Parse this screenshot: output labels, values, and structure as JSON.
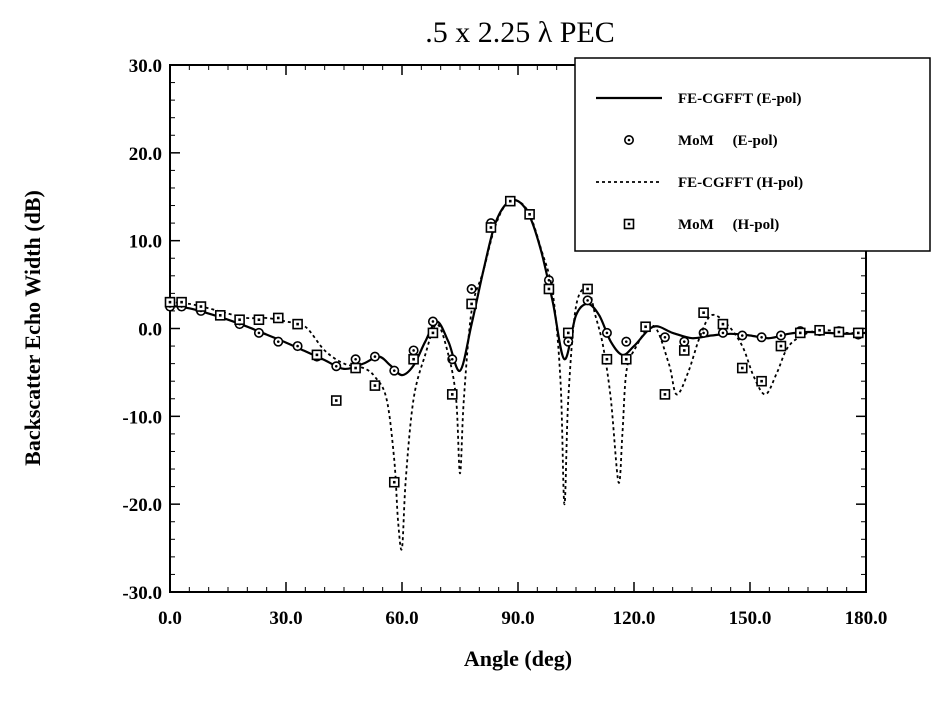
{
  "chart_data": {
    "type": "line",
    "title": ".5 x 2.25 λ PEC",
    "xlabel": "Angle (deg)",
    "ylabel": "Backscatter Echo Width (dB)",
    "xlim": [
      0,
      180
    ],
    "ylim": [
      -30,
      30
    ],
    "xticks": [
      "0.0",
      "30.0",
      "60.0",
      "90.0",
      "120.0",
      "150.0",
      "180.0"
    ],
    "yticks": [
      "30.0",
      "20.0",
      "10.0",
      "0.0",
      "-10.0",
      "-20.0",
      "-30.0"
    ],
    "grid": false,
    "legend_position": "top-right",
    "series": [
      {
        "name": "FE-CGFFT (E-pol)",
        "style": "solid",
        "x": [
          0,
          5,
          10,
          15,
          20,
          25,
          30,
          35,
          40,
          45,
          50,
          54,
          57,
          60,
          63,
          66,
          69,
          72,
          75,
          78,
          81,
          84,
          87,
          90,
          93,
          96,
          99,
          102,
          105,
          108,
          111,
          114,
          117,
          120,
          125,
          130,
          135,
          140,
          145,
          150,
          155,
          160,
          165,
          170,
          175,
          180
        ],
        "y": [
          2.6,
          2.3,
          1.7,
          1.0,
          0.2,
          -0.7,
          -1.6,
          -2.6,
          -3.6,
          -4.6,
          -4.0,
          -3.2,
          -4.2,
          -5.3,
          -4.2,
          -1.5,
          0.8,
          -1.5,
          -4.8,
          0.5,
          6.5,
          11.8,
          14.2,
          14.5,
          12.8,
          8.8,
          3.0,
          -3.5,
          1.5,
          2.8,
          1.5,
          -1.5,
          -3.0,
          -2.0,
          0.2,
          -0.5,
          -1.1,
          -0.8,
          -0.6,
          -0.8,
          -1.1,
          -0.6,
          -0.4,
          -0.5,
          -0.6,
          -0.5
        ]
      },
      {
        "name": "MoM     (E-pol)",
        "style": "circle-markers",
        "x": [
          0,
          3,
          8,
          13,
          18,
          23,
          28,
          33,
          38,
          43,
          48,
          53,
          58,
          63,
          68,
          73,
          78,
          83,
          88,
          93,
          98,
          103,
          108,
          113,
          118,
          123,
          128,
          133,
          138,
          143,
          148,
          153,
          158,
          163,
          168,
          173,
          178
        ],
        "y": [
          2.5,
          2.5,
          2.0,
          1.5,
          0.5,
          -0.5,
          -1.5,
          -2.0,
          -3.2,
          -4.3,
          -3.5,
          -3.2,
          -4.8,
          -2.5,
          0.8,
          -3.5,
          4.5,
          12.0,
          14.5,
          13.0,
          5.5,
          -1.5,
          3.2,
          -0.5,
          -1.5,
          0.2,
          -1.0,
          -1.5,
          -0.5,
          -0.5,
          -0.8,
          -1.0,
          -0.8,
          -0.3,
          -0.3,
          -0.3,
          -0.7
        ]
      },
      {
        "name": "FE-CGFFT (H-pol)",
        "style": "dotted",
        "x": [
          0,
          5,
          10,
          15,
          20,
          25,
          30,
          35,
          40,
          45,
          50,
          53,
          56,
          58,
          59,
          60,
          61,
          63,
          66,
          69,
          72,
          74,
          75,
          76,
          78,
          81,
          84,
          87,
          90,
          93,
          96,
          99,
          101,
          102,
          103,
          105,
          108,
          110,
          112,
          114,
          116,
          117,
          118,
          120,
          125,
          129,
          131,
          134,
          137,
          140,
          144,
          148,
          151,
          154,
          157,
          160,
          165,
          170,
          175,
          180
        ],
        "y": [
          3.0,
          2.8,
          2.3,
          1.7,
          1.2,
          1.2,
          0.8,
          0.2,
          -2.5,
          -4.0,
          -4.5,
          -5.5,
          -8.0,
          -15.0,
          -22.0,
          -25.0,
          -17.0,
          -8.0,
          -3.0,
          0.5,
          -3.0,
          -8.0,
          -16.5,
          -8.0,
          2.0,
          6.5,
          11.5,
          14.2,
          14.5,
          13.0,
          9.0,
          4.0,
          -6.0,
          -20.0,
          -8.0,
          2.5,
          4.5,
          1.5,
          -2.0,
          -8.0,
          -17.5,
          -12.0,
          -5.0,
          -2.5,
          0.3,
          -4.0,
          -7.5,
          -5.0,
          -1.0,
          1.5,
          0.5,
          -2.0,
          -5.5,
          -7.5,
          -5.0,
          -2.0,
          -0.5,
          -0.2,
          -0.5,
          -0.5
        ]
      },
      {
        "name": "MoM     (H-pol)",
        "style": "square-markers",
        "x": [
          0,
          3,
          8,
          13,
          18,
          23,
          28,
          33,
          38,
          43,
          48,
          53,
          58,
          63,
          68,
          73,
          78,
          83,
          88,
          93,
          98,
          103,
          108,
          113,
          118,
          123,
          128,
          133,
          138,
          143,
          148,
          153,
          158,
          163,
          168,
          173,
          178
        ],
        "y": [
          3.0,
          3.0,
          2.5,
          1.5,
          1.0,
          1.0,
          1.2,
          0.5,
          -3.0,
          -8.2,
          -4.5,
          -6.5,
          -17.5,
          -3.5,
          -0.5,
          -7.5,
          2.8,
          11.5,
          14.5,
          13.0,
          4.5,
          -0.5,
          4.5,
          -3.5,
          -3.5,
          0.2,
          -7.5,
          -2.5,
          1.8,
          0.5,
          -4.5,
          -6.0,
          -2.0,
          -0.5,
          -0.2,
          -0.4,
          -0.5
        ]
      }
    ]
  }
}
